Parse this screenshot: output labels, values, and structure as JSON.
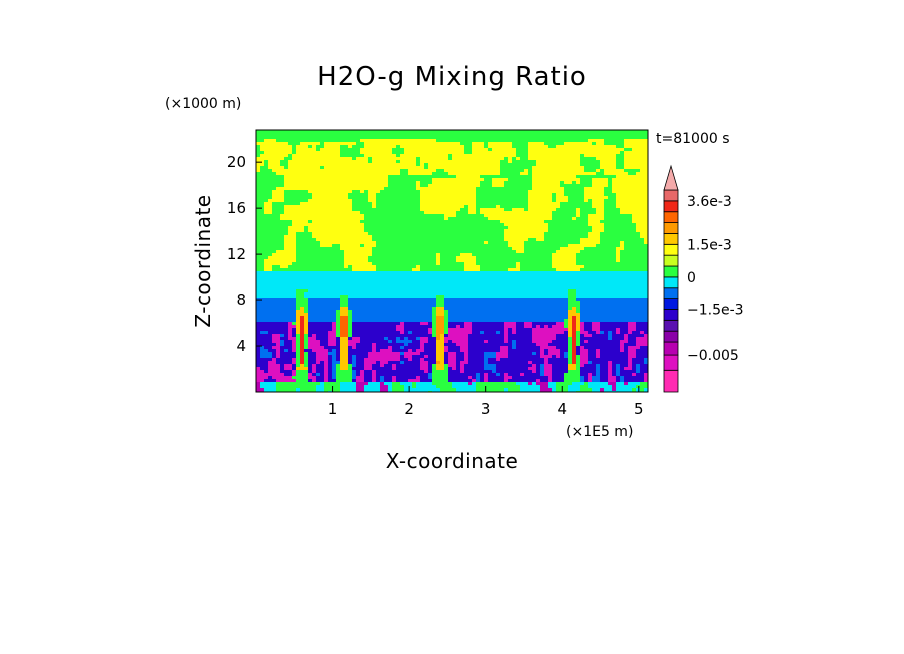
{
  "chart_data": {
    "type": "heatmap",
    "title": "H2O-g Mixing Ratio",
    "xlabel": "X-coordinate",
    "ylabel": "Z-coordinate",
    "x_unit": "(×1E5 m)",
    "y_unit": "(×1000 m)",
    "xlim": [
      0,
      5.12
    ],
    "ylim": [
      0,
      22.8
    ],
    "x_ticks": [
      {
        "value": 1,
        "label": "1"
      },
      {
        "value": 2,
        "label": "2"
      },
      {
        "value": 3,
        "label": "3"
      },
      {
        "value": 4,
        "label": "4"
      },
      {
        "value": 5,
        "label": "5"
      }
    ],
    "y_ticks": [
      {
        "value": 4,
        "label": "4"
      },
      {
        "value": 8,
        "label": "8"
      },
      {
        "value": 12,
        "label": "12"
      },
      {
        "value": 16,
        "label": "16"
      },
      {
        "value": 20,
        "label": "20"
      }
    ],
    "time_label": "t=81000 s",
    "colorbar": {
      "levels": [
        -0.0075,
        -0.0063,
        -0.005,
        -0.0038,
        -0.0025,
        -0.002,
        -0.0015,
        -0.001,
        -0.0005,
        0,
        0.0005,
        0.001,
        0.0015,
        0.002,
        0.0026,
        0.0031,
        0.0036,
        0.0045
      ],
      "colors": [
        "#ff2bb2",
        "#dd10c0",
        "#b700b0",
        "#8a00a8",
        "#5a10b0",
        "#2c00cc",
        "#0018e0",
        "#0070f0",
        "#00e8f8",
        "#2aff40",
        "#c8ff20",
        "#ffff10",
        "#ffc800",
        "#ff9a00",
        "#ff6600",
        "#f02818",
        "#e86868",
        "#f4aaaa"
      ],
      "tick_labels": [
        {
          "value": 0.0036,
          "label": "3.6e-3"
        },
        {
          "value": 0.0015,
          "label": "1.5e-3"
        },
        {
          "value": 0,
          "label": "0"
        },
        {
          "value": -0.0015,
          "label": "−1.5e-3"
        },
        {
          "value": -0.005,
          "label": "−0.005"
        }
      ],
      "extend": "max"
    },
    "regions_by_height": [
      {
        "z_from": 0,
        "z_to": 1,
        "level": "mixed-surface"
      },
      {
        "z_from": 1,
        "z_to": 6,
        "level": -0.004
      },
      {
        "z_from": 6,
        "z_to": 8,
        "level": -0.001
      },
      {
        "z_from": 8,
        "z_to": 10,
        "level": -0.0003
      },
      {
        "z_from": 10,
        "z_to": 22.8,
        "level": 0.0002
      }
    ],
    "plumes": [
      {
        "x": 0.6,
        "z_top": 9.0,
        "peak": 0.0031
      },
      {
        "x": 1.15,
        "z_top": 8.5,
        "peak": 0.0026
      },
      {
        "x": 2.4,
        "z_top": 8.5,
        "peak": 0.002
      },
      {
        "x": 4.15,
        "z_top": 9.0,
        "peak": 0.0031
      }
    ]
  }
}
